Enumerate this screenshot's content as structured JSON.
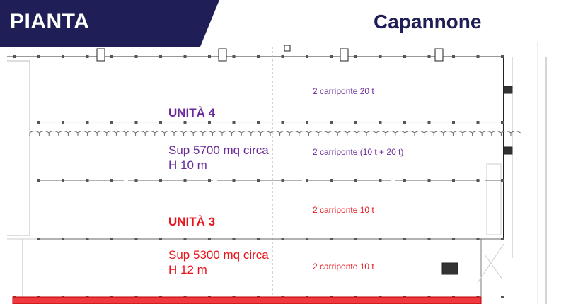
{
  "header": {
    "section_label": "PIANTA",
    "title": "Capannone"
  },
  "colors": {
    "banner": "#201e57",
    "unit4": "#6a2a9a",
    "unit3": "#e8141c",
    "highlight_band": "#f0393f"
  },
  "units": [
    {
      "name": "UNITÀ 4",
      "surface": "Sup 5700 mq circa",
      "height": "H 10 m",
      "cranes": [
        "2 carriponte 20 t",
        "2 carriponte (10 t + 20 t)"
      ]
    },
    {
      "name": "UNITÀ 3",
      "surface": "Sup 5300 mq circa",
      "height": "H 12 m",
      "cranes": [
        "2 carriponte 10 t",
        "2 carriponte 10 t"
      ]
    }
  ]
}
